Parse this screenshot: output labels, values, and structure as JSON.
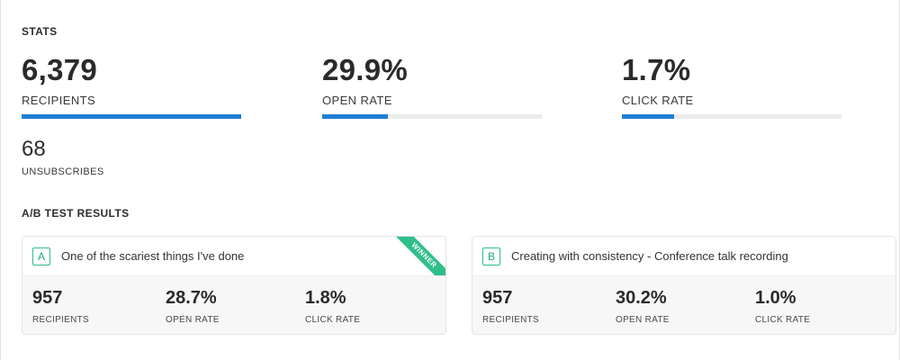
{
  "stats": {
    "title": "STATS",
    "recipients": {
      "value": "6,379",
      "label": "RECIPIENTS",
      "progress": 1.0
    },
    "open_rate": {
      "value": "29.9%",
      "label": "OPEN RATE",
      "progress": 0.299
    },
    "click_rate": {
      "value": "1.7%",
      "label": "CLICK RATE",
      "progress": 0.237
    },
    "unsubscribes": {
      "value": "68",
      "label": "UNSUBSCRIBES"
    }
  },
  "ab_test": {
    "title": "A/B TEST RESULTS",
    "variants": [
      {
        "badge": "A",
        "subject": "One of the scariest things I've done",
        "winner": true,
        "winner_label": "WINNER",
        "recipients": "957",
        "open_rate": "28.7%",
        "click_rate": "1.8%"
      },
      {
        "badge": "B",
        "subject": "Creating with consistency - Conference talk recording",
        "winner": false,
        "recipients": "957",
        "open_rate": "30.2%",
        "click_rate": "1.0%"
      }
    ],
    "labels": {
      "recipients": "RECIPIENTS",
      "open_rate": "OPEN RATE",
      "click_rate": "CLICK RATE"
    }
  },
  "colors": {
    "accent": "#1f7fd4",
    "winner": "#2fbf8a",
    "track": "#ececec"
  }
}
